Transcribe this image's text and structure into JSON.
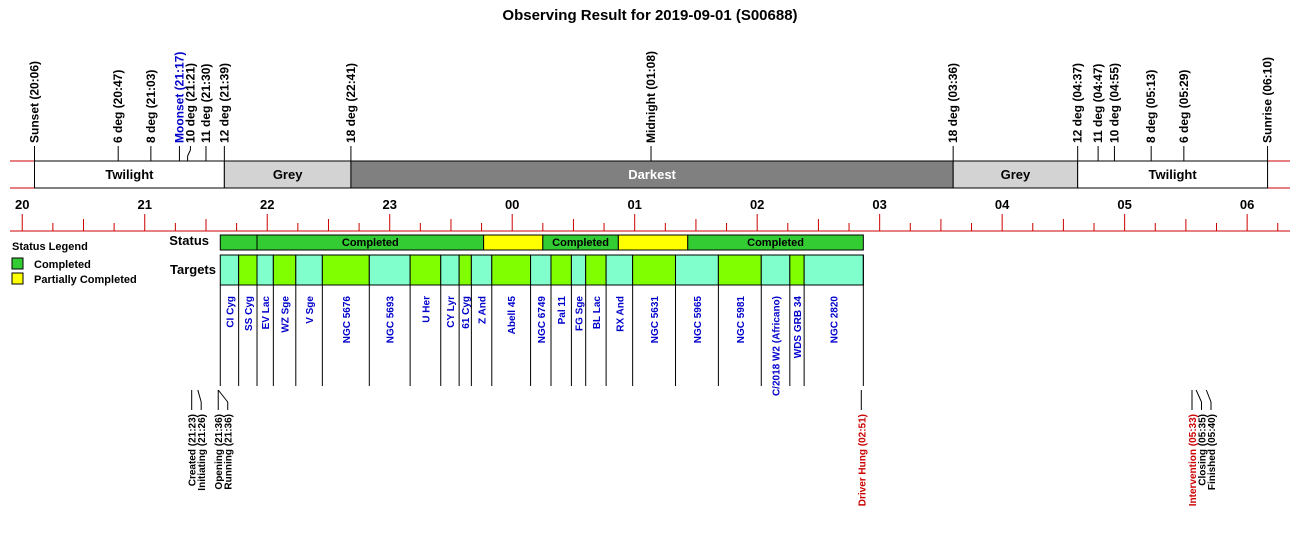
{
  "title": "Observing Result for 2019-09-01 (S00688)",
  "colors": {
    "redline": "#cc0000",
    "twilight": "#ffffff",
    "grey": "#d3d3d3",
    "darkest": "#808080",
    "completed": "#33cc33",
    "partial": "#ffff00",
    "target_a": "#80ffcc",
    "target_b": "#80ff00",
    "target_text": "#0000cc",
    "moon_text": "#0000cc",
    "alert_text": "#cc0000"
  },
  "chart_data": {
    "type": "timeline",
    "time_axis": {
      "start": "19:54",
      "end": "06:21",
      "hour_labels": [
        "20",
        "21",
        "22",
        "23",
        "00",
        "01",
        "02",
        "03",
        "04",
        "05",
        "06"
      ]
    },
    "sky_events": [
      {
        "label": "Sunset (20:06)",
        "time": "20:06",
        "kind": "normal"
      },
      {
        "label": "6 deg (20:47)",
        "time": "20:47",
        "kind": "normal"
      },
      {
        "label": "8 deg (21:03)",
        "time": "21:03",
        "kind": "normal"
      },
      {
        "label": "Moonset (21:17)",
        "time": "21:17",
        "kind": "moon"
      },
      {
        "label": "10 deg (21:21)",
        "time": "21:21",
        "kind": "normal"
      },
      {
        "label": "11 deg (21:30)",
        "time": "21:30",
        "kind": "normal"
      },
      {
        "label": "12 deg (21:39)",
        "time": "21:39",
        "kind": "normal"
      },
      {
        "label": "18 deg (22:41)",
        "time": "22:41",
        "kind": "normal"
      },
      {
        "label": "Midnight (01:08)",
        "time": "01:08",
        "kind": "normal"
      },
      {
        "label": "18 deg (03:36)",
        "time": "03:36",
        "kind": "normal"
      },
      {
        "label": "12 deg (04:37)",
        "time": "04:37",
        "kind": "normal"
      },
      {
        "label": "11 deg (04:47)",
        "time": "04:47",
        "kind": "normal"
      },
      {
        "label": "10 deg (04:55)",
        "time": "04:55",
        "kind": "normal"
      },
      {
        "label": "8 deg (05:13)",
        "time": "05:13",
        "kind": "normal"
      },
      {
        "label": "6 deg (05:29)",
        "time": "05:29",
        "kind": "normal"
      },
      {
        "label": "Sunrise (06:10)",
        "time": "06:10",
        "kind": "normal"
      }
    ],
    "bands": [
      {
        "label": "Twilight",
        "start": "20:06",
        "end": "21:39",
        "color": "twilight"
      },
      {
        "label": "Grey",
        "start": "21:39",
        "end": "22:41",
        "color": "grey"
      },
      {
        "label": "Darkest",
        "start": "22:41",
        "end": "03:36",
        "color": "darkest"
      },
      {
        "label": "Grey",
        "start": "03:36",
        "end": "04:37",
        "color": "grey"
      },
      {
        "label": "Twilight",
        "start": "04:37",
        "end": "06:10",
        "color": "twilight"
      }
    ],
    "legend": {
      "title": "Status Legend",
      "items": [
        {
          "label": "Completed",
          "color": "completed"
        },
        {
          "label": "Partially Completed",
          "color": "partial"
        }
      ]
    },
    "rows": {
      "status": "Status",
      "targets": "Targets"
    },
    "status_segments": [
      {
        "start": "21:37",
        "end": "21:55",
        "status": "completed",
        "label": ""
      },
      {
        "start": "21:55",
        "end": "23:46",
        "status": "completed",
        "label": "Completed"
      },
      {
        "start": "23:46",
        "end": "00:15",
        "status": "partial",
        "label": ""
      },
      {
        "start": "00:15",
        "end": "00:52",
        "status": "completed",
        "label": "Completed"
      },
      {
        "start": "00:52",
        "end": "01:26",
        "status": "partial",
        "label": ""
      },
      {
        "start": "01:26",
        "end": "02:52",
        "status": "completed",
        "label": "Completed"
      }
    ],
    "targets": [
      {
        "name": "CI Cyg",
        "start": "21:37",
        "end": "21:46",
        "shade": "a"
      },
      {
        "name": "SS Cyg",
        "start": "21:46",
        "end": "21:55",
        "shade": "b"
      },
      {
        "name": "EV Lac",
        "start": "21:55",
        "end": "22:03",
        "shade": "a"
      },
      {
        "name": "WZ Sge",
        "start": "22:03",
        "end": "22:14",
        "shade": "b"
      },
      {
        "name": "V Sge",
        "start": "22:14",
        "end": "22:27",
        "shade": "a"
      },
      {
        "name": "NGC 5676",
        "start": "22:27",
        "end": "22:50",
        "shade": "b"
      },
      {
        "name": "NGC 5693",
        "start": "22:50",
        "end": "23:10",
        "shade": "a"
      },
      {
        "name": "U Her",
        "start": "23:10",
        "end": "23:25",
        "shade": "b"
      },
      {
        "name": "CY Lyr",
        "start": "23:25",
        "end": "23:34",
        "shade": "a"
      },
      {
        "name": "61 Cyg",
        "start": "23:34",
        "end": "23:40",
        "shade": "b"
      },
      {
        "name": "Z And",
        "start": "23:40",
        "end": "23:50",
        "shade": "a"
      },
      {
        "name": "Abell 45",
        "start": "23:50",
        "end": "00:09",
        "shade": "b"
      },
      {
        "name": "NGC 6749",
        "start": "00:09",
        "end": "00:19",
        "shade": "a"
      },
      {
        "name": "Pal 11",
        "start": "00:19",
        "end": "00:29",
        "shade": "b"
      },
      {
        "name": "FG Sge",
        "start": "00:29",
        "end": "00:36",
        "shade": "a"
      },
      {
        "name": "BL Lac",
        "start": "00:36",
        "end": "00:46",
        "shade": "b"
      },
      {
        "name": "RX And",
        "start": "00:46",
        "end": "00:59",
        "shade": "a"
      },
      {
        "name": "NGC 5631",
        "start": "00:59",
        "end": "01:20",
        "shade": "b"
      },
      {
        "name": "NGC 5965",
        "start": "01:20",
        "end": "01:41",
        "shade": "a"
      },
      {
        "name": "NGC 5981",
        "start": "01:41",
        "end": "02:02",
        "shade": "b"
      },
      {
        "name": "C/2018 W2 (Africano)",
        "start": "02:02",
        "end": "02:16",
        "shade": "a"
      },
      {
        "name": "WDS GRB 34",
        "start": "02:16",
        "end": "02:23",
        "shade": "b"
      },
      {
        "name": "NGC 2820",
        "start": "02:23",
        "end": "02:52",
        "shade": "a"
      }
    ],
    "log_events": [
      {
        "label": "Created (21:23)",
        "time": "21:23",
        "kind": "normal"
      },
      {
        "label": "Initiating (21:26)",
        "time": "21:26",
        "kind": "normal"
      },
      {
        "label": "Opening (21:36)",
        "time": "21:36",
        "kind": "normal"
      },
      {
        "label": "Running (21:36)",
        "time": "21:36",
        "kind": "normal"
      },
      {
        "label": "Driver Hung (02:51)",
        "time": "02:51",
        "kind": "alert"
      },
      {
        "label": "Intervention (05:33)",
        "time": "05:33",
        "kind": "alert"
      },
      {
        "label": "Closing (05:35)",
        "time": "05:35",
        "kind": "normal"
      },
      {
        "label": "Finished (05:40)",
        "time": "05:40",
        "kind": "normal"
      }
    ]
  }
}
